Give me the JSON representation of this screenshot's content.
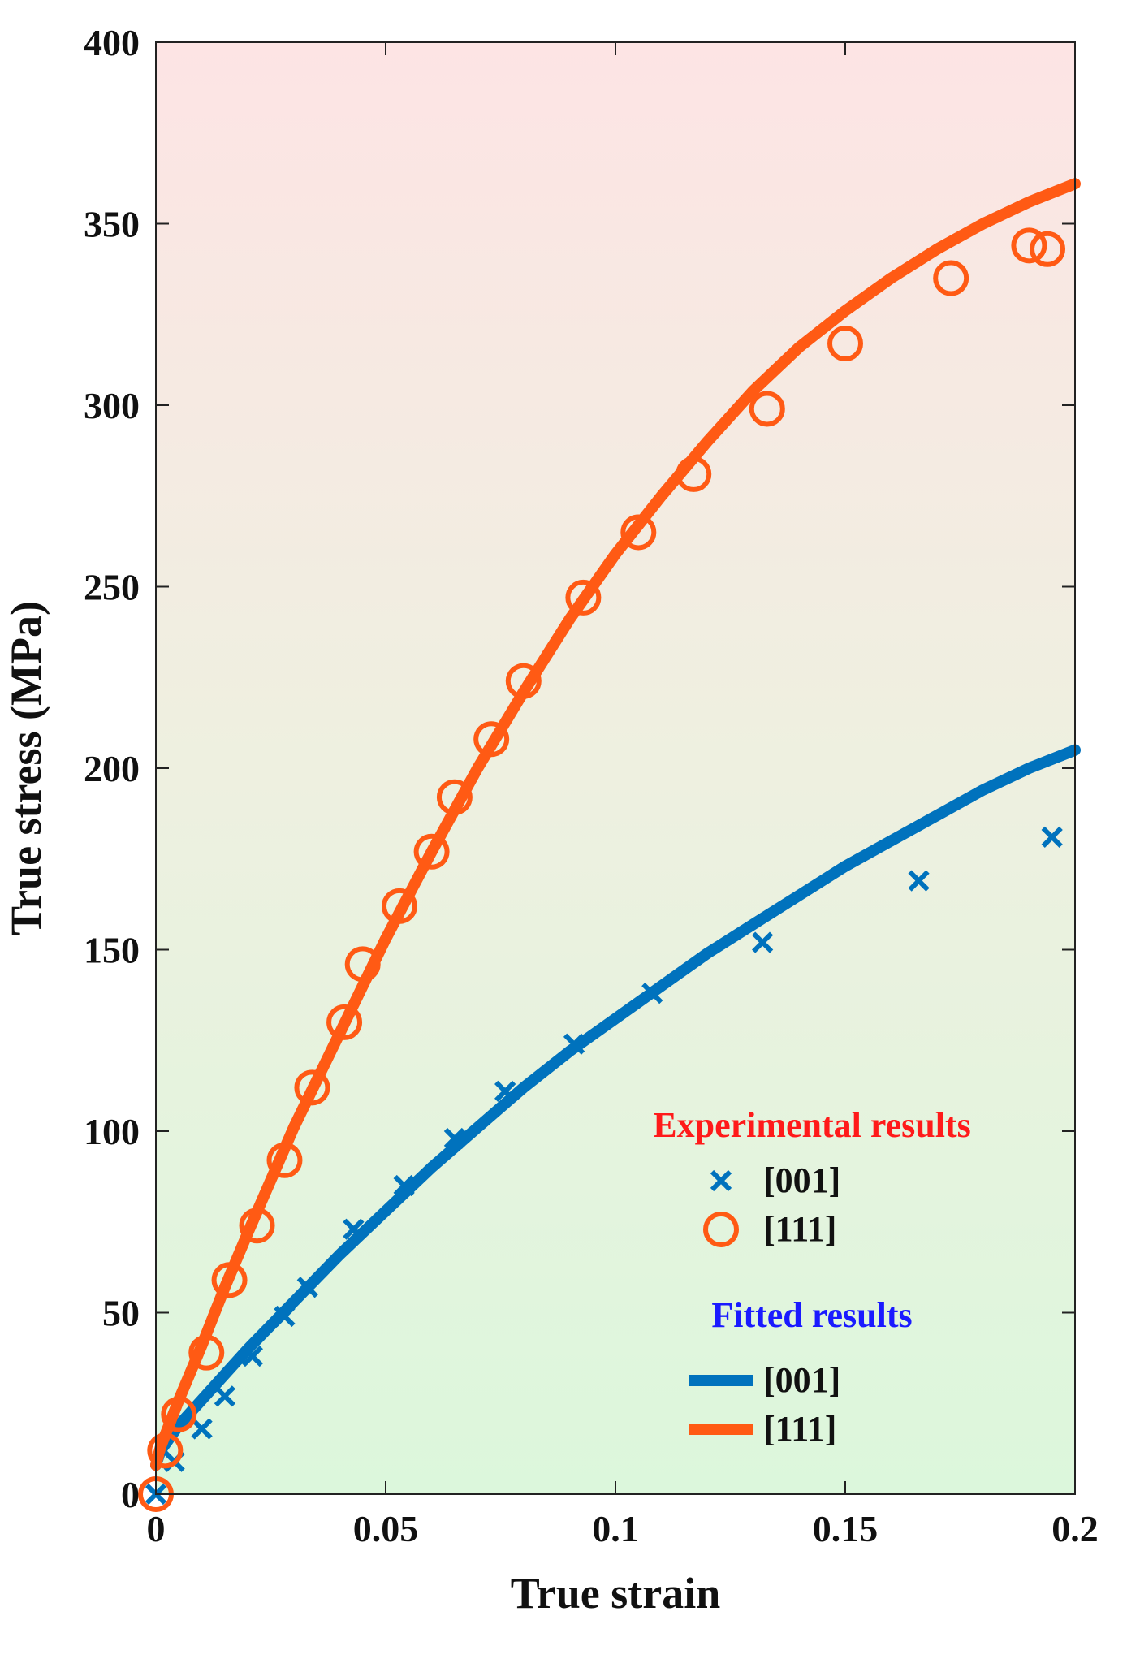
{
  "chart_data": {
    "type": "scatter",
    "title": "",
    "xlabel": "True strain",
    "ylabel": "True stress (MPa)",
    "xlim": [
      0,
      0.2
    ],
    "ylim": [
      0,
      400
    ],
    "x_ticks": [
      0,
      0.05,
      0.1,
      0.15,
      0.2
    ],
    "x_tick_labels": [
      "0",
      "0.05",
      "0.1",
      "0.15",
      "0.2"
    ],
    "y_ticks": [
      0,
      50,
      100,
      150,
      200,
      250,
      300,
      350,
      400
    ],
    "y_tick_labels": [
      "0",
      "50",
      "100",
      "150",
      "200",
      "250",
      "300",
      "350",
      "400"
    ],
    "grid": false,
    "background": "vertical gradient, pink (#fde4e4) at top to light green (#dcf7dc) at bottom",
    "legend": {
      "placement": "bottom-right",
      "experimental_heading": "Experimental results",
      "experimental_heading_color": "#ff1a1a",
      "fitted_heading": "Fitted results",
      "fitted_heading_color": "#1a1aff",
      "experimental_entries": [
        {
          "label": "[001]",
          "marker": "x",
          "color": "#0072bd"
        },
        {
          "label": "[111]",
          "marker": "o",
          "color": "#ff5a14"
        }
      ],
      "fitted_entries": [
        {
          "label": "[001]",
          "line": "solid",
          "color": "#0072bd"
        },
        {
          "label": "[111]",
          "line": "solid",
          "color": "#ff5a14"
        }
      ]
    },
    "series": [
      {
        "name": "[001]",
        "group": "Experimental results",
        "kind": "scatter",
        "marker": "x",
        "color": "#0072bd",
        "x": [
          0,
          0.004,
          0.01,
          0.015,
          0.021,
          0.028,
          0.033,
          0.043,
          0.054,
          0.065,
          0.076,
          0.091,
          0.108,
          0.132,
          0.166,
          0.195
        ],
        "y": [
          0,
          9,
          18,
          27,
          38,
          49,
          57,
          73,
          85,
          98,
          111,
          124,
          138,
          152,
          169,
          181
        ]
      },
      {
        "name": "[111]",
        "group": "Experimental results",
        "kind": "scatter",
        "marker": "o",
        "color": "#ff5a14",
        "x": [
          0,
          0.002,
          0.005,
          0.011,
          0.016,
          0.022,
          0.028,
          0.034,
          0.041,
          0.045,
          0.053,
          0.06,
          0.065,
          0.073,
          0.08,
          0.093,
          0.105,
          0.117,
          0.133,
          0.15,
          0.173,
          0.19,
          0.194
        ],
        "y": [
          0,
          12,
          22,
          39,
          59,
          74,
          92,
          112,
          130,
          146,
          162,
          177,
          192,
          208,
          224,
          247,
          265,
          281,
          299,
          317,
          335,
          344,
          343
        ]
      },
      {
        "name": "[001]",
        "group": "Fitted results",
        "kind": "line",
        "color": "#0072bd",
        "x": [
          0,
          0.001,
          0.005,
          0.01,
          0.02,
          0.03,
          0.04,
          0.05,
          0.06,
          0.07,
          0.08,
          0.09,
          0.1,
          0.11,
          0.12,
          0.13,
          0.14,
          0.15,
          0.16,
          0.17,
          0.18,
          0.19,
          0.2
        ],
        "y": [
          8,
          12,
          19,
          26,
          40,
          53,
          66,
          78,
          90,
          101,
          112,
          122,
          131,
          140,
          149,
          157,
          165,
          173,
          180,
          187,
          194,
          200,
          205
        ]
      },
      {
        "name": "[111]",
        "group": "Fitted results",
        "kind": "line",
        "color": "#ff5a14",
        "x": [
          0,
          0.001,
          0.005,
          0.01,
          0.015,
          0.02,
          0.03,
          0.04,
          0.05,
          0.06,
          0.07,
          0.08,
          0.09,
          0.1,
          0.11,
          0.12,
          0.13,
          0.14,
          0.15,
          0.16,
          0.17,
          0.18,
          0.19,
          0.2
        ],
        "y": [
          8,
          13,
          26,
          41,
          57,
          72,
          101,
          127,
          153,
          177,
          200,
          221,
          241,
          259,
          275,
          290,
          304,
          316,
          326,
          335,
          343,
          350,
          356,
          361
        ]
      }
    ]
  }
}
